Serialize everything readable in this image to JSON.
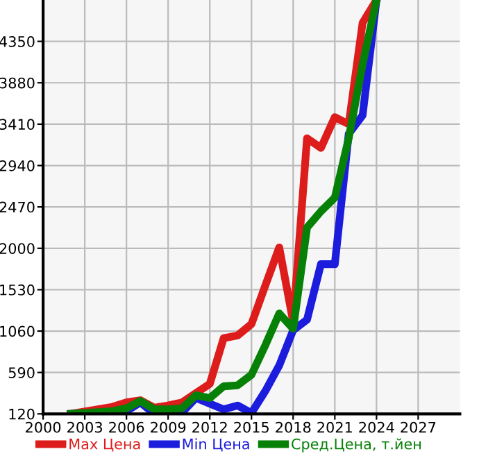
{
  "chart_data": {
    "type": "line",
    "x": [
      2002,
      2005,
      2006,
      2007,
      2008,
      2009,
      2010,
      2011,
      2012,
      2013,
      2014,
      2015,
      2016,
      2017,
      2018,
      2019,
      2020,
      2021,
      2022,
      2023,
      2024
    ],
    "series": [
      {
        "name": "Max Цена",
        "color": "#dd1c1c",
        "values": [
          120,
          200,
          250,
          275,
          190,
          215,
          250,
          355,
          460,
          980,
          1010,
          1140,
          1580,
          2010,
          1165,
          3250,
          3140,
          3490,
          3410,
          4560,
          4820
        ]
      },
      {
        "name": "Min Цена",
        "color": "#1c1cdd",
        "values": [
          120,
          130,
          150,
          250,
          120,
          120,
          135,
          300,
          235,
          170,
          215,
          130,
          380,
          670,
          1070,
          1190,
          1820,
          1820,
          3300,
          3510,
          4820
        ]
      },
      {
        "name": "Сред.Цена, т.йен",
        "color": "#078007",
        "values": [
          120,
          150,
          183,
          266,
          172,
          172,
          183,
          330,
          300,
          433,
          444,
          564,
          900,
          1260,
          1086,
          2235,
          2420,
          2575,
          3250,
          4090,
          4820
        ]
      }
    ],
    "xlim": [
      2000,
      2030
    ],
    "ylim": [
      120,
      4820
    ],
    "xticks": [
      2000,
      2003,
      2006,
      2009,
      2012,
      2015,
      2018,
      2021,
      2024,
      2027
    ],
    "yticks": [
      120,
      590,
      1060,
      1530,
      2000,
      2470,
      2940,
      3410,
      3880,
      4350
    ],
    "grid": true,
    "legend": "bottom",
    "marker": "none",
    "line_style": "solid"
  }
}
